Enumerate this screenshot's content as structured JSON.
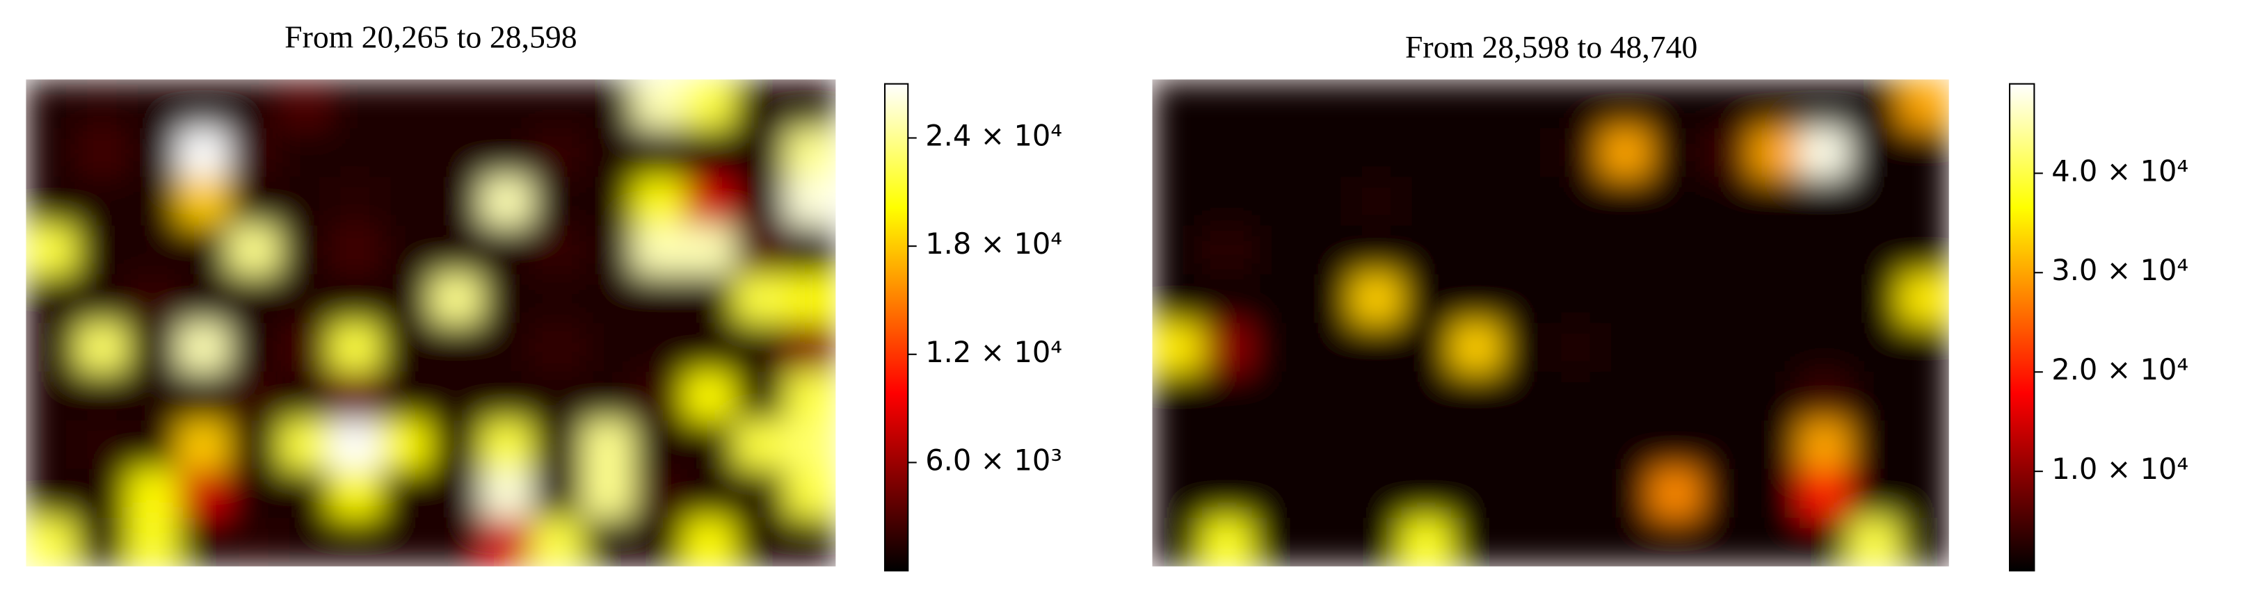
{
  "chart_data": [
    {
      "type": "heatmap",
      "title": "From 20,265 to 28,598",
      "colormap": "hot",
      "clim": [
        0,
        27000
      ],
      "cticks": [
        {
          "value": 6000,
          "label": "6.0 × 10³"
        },
        {
          "value": 12000,
          "label": "1.2 × 10⁴"
        },
        {
          "value": 18000,
          "label": "1.8 × 10⁴"
        },
        {
          "value": 24000,
          "label": "2.4 × 10⁴"
        }
      ],
      "z": [
        [
          1000,
          1500,
          1000,
          1000,
          1000,
          3000,
          1000,
          1000,
          1000,
          1000,
          1000,
          1000,
          25000,
          22000,
          1000,
          1000
        ],
        [
          1000,
          2500,
          1000,
          27000,
          2000,
          1000,
          1000,
          1000,
          1000,
          1000,
          2000,
          1000,
          1000,
          1000,
          1000,
          24000
        ],
        [
          1000,
          1000,
          1000,
          18000,
          1000,
          1000,
          1500,
          1000,
          1000,
          25000,
          1000,
          1000,
          20000,
          8000,
          1000,
          26000
        ],
        [
          22000,
          1000,
          1000,
          1000,
          24000,
          1000,
          2500,
          1000,
          1000,
          1000,
          2000,
          1000,
          25000,
          25000,
          3000,
          1000
        ],
        [
          1000,
          1000,
          2000,
          1000,
          1000,
          1000,
          1000,
          1000,
          24000,
          1000,
          1000,
          1000,
          1000,
          1000,
          22000,
          20000
        ],
        [
          1000,
          23000,
          1000,
          25000,
          1000,
          2500,
          22000,
          1000,
          1000,
          1000,
          2000,
          1000,
          1000,
          1000,
          1000,
          5000
        ],
        [
          1000,
          1000,
          1000,
          1000,
          2000,
          1000,
          4000,
          1000,
          1000,
          1000,
          1000,
          1000,
          2000,
          20000,
          1000,
          22000
        ],
        [
          1000,
          1500,
          1000,
          18000,
          1000,
          22000,
          27000,
          20000,
          1000,
          22000,
          1000,
          24000,
          1000,
          1000,
          22000,
          23000
        ],
        [
          1000,
          1000,
          20000,
          8000,
          1000,
          1000,
          20000,
          1000,
          1000,
          26000,
          1000,
          24000,
          2000,
          1000,
          1000,
          22000
        ],
        [
          22000,
          1000,
          21000,
          1000,
          1500,
          1000,
          1000,
          1000,
          1000,
          8000,
          22000,
          1000,
          1000,
          20000,
          1000,
          1000
        ]
      ]
    },
    {
      "type": "heatmap",
      "title": "From 28,598 to 48,740",
      "colormap": "hot",
      "clim": [
        0,
        49000
      ],
      "cticks": [
        {
          "value": 10000,
          "label": "1.0 × 10⁴"
        },
        {
          "value": 20000,
          "label": "2.0 × 10⁴"
        },
        {
          "value": 30000,
          "label": "3.0 × 10⁴"
        },
        {
          "value": 40000,
          "label": "4.0 × 10⁴"
        }
      ],
      "z": [
        [
          1000,
          1000,
          1000,
          1000,
          1000,
          1000,
          1000,
          1000,
          1000,
          1000,
          1000,
          1000,
          1000,
          1000,
          1000,
          30000
        ],
        [
          1000,
          1000,
          1000,
          1000,
          1000,
          1000,
          1000,
          1000,
          2000,
          30000,
          1000,
          4000,
          30000,
          48000,
          1000,
          1000
        ],
        [
          1000,
          1000,
          1000,
          1000,
          2000,
          1000,
          1000,
          1000,
          1000,
          1000,
          1000,
          1000,
          1000,
          1000,
          1000,
          1000
        ],
        [
          1000,
          3000,
          1000,
          1000,
          1000,
          1000,
          1000,
          1000,
          1000,
          1000,
          1000,
          1000,
          1000,
          1000,
          1000,
          1000
        ],
        [
          1000,
          1000,
          1000,
          1000,
          33000,
          1000,
          1000,
          1000,
          1000,
          1000,
          1000,
          1000,
          1000,
          1000,
          1000,
          35000
        ],
        [
          35000,
          10000,
          1000,
          1000,
          1000,
          1000,
          33000,
          1000,
          2000,
          1000,
          1000,
          1000,
          1000,
          1000,
          1000,
          1000
        ],
        [
          1000,
          1000,
          1000,
          1000,
          1000,
          1000,
          1000,
          1000,
          1000,
          1000,
          1000,
          1000,
          1000,
          4000,
          1000,
          1000
        ],
        [
          1000,
          1000,
          1000,
          1000,
          1000,
          1000,
          1000,
          1000,
          1000,
          1000,
          1000,
          1000,
          1000,
          30000,
          1000,
          1000
        ],
        [
          1000,
          1000,
          1000,
          1000,
          1000,
          1000,
          1000,
          1000,
          1000,
          1000,
          28000,
          1000,
          1000,
          20000,
          1000,
          1000
        ],
        [
          1000,
          38000,
          1000,
          1000,
          1000,
          38000,
          1000,
          1000,
          1000,
          1000,
          1000,
          1000,
          1000,
          1000,
          40000,
          1000
        ]
      ]
    }
  ]
}
